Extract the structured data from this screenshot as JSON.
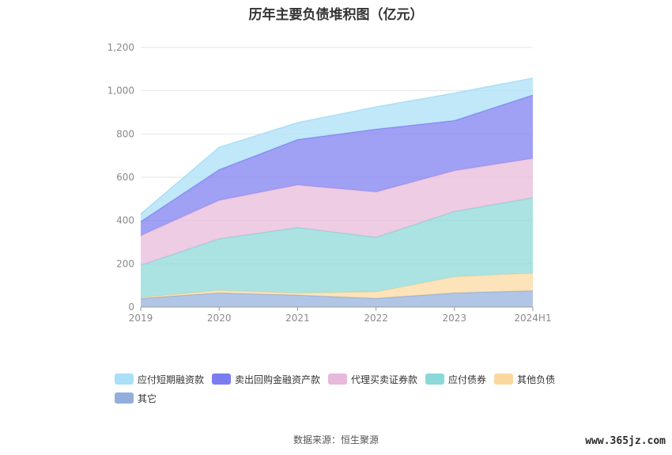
{
  "chart_data": {
    "type": "area",
    "stacked": true,
    "title": "历年主要负债堆积图（亿元）",
    "categories": [
      "2019",
      "2020",
      "2021",
      "2022",
      "2023",
      "2024H1"
    ],
    "ylim": [
      0,
      1200
    ],
    "yticks": [
      "0",
      "200",
      "400",
      "600",
      "800",
      "1,000",
      "1,200"
    ],
    "grid": true,
    "legend_position": "bottom",
    "series": [
      {
        "name": "其它",
        "color": "#93aedc",
        "values": [
          40,
          65,
          55,
          40,
          65,
          75
        ]
      },
      {
        "name": "其他负债",
        "color": "#fbd8a0",
        "values": [
          5,
          12,
          10,
          30,
          75,
          82
        ]
      },
      {
        "name": "应付债券",
        "color": "#8ad8d8",
        "values": [
          148,
          238,
          302,
          252,
          302,
          348
        ]
      },
      {
        "name": "代理买卖证券款",
        "color": "#e6b8da",
        "values": [
          137,
          178,
          197,
          210,
          188,
          182
        ]
      },
      {
        "name": "卖出回购金融资产款",
        "color": "#7b7cf0",
        "values": [
          65,
          142,
          210,
          290,
          232,
          293
        ]
      },
      {
        "name": "应付短期融资款",
        "color": "#a9dff7",
        "values": [
          35,
          103,
          78,
          103,
          127,
          78
        ]
      }
    ]
  },
  "legend": {
    "items": [
      {
        "label": "应付短期融资款",
        "color": "#a9dff7"
      },
      {
        "label": "卖出回购金融资产款",
        "color": "#7b7cf0"
      },
      {
        "label": "代理买卖证券款",
        "color": "#e6b8da"
      },
      {
        "label": "应付债券",
        "color": "#8ad8d8"
      },
      {
        "label": "其他负债",
        "color": "#fbd8a0"
      },
      {
        "label": "其它",
        "color": "#93aedc"
      }
    ]
  },
  "footer": {
    "source": "数据来源：恒生聚源",
    "watermark": "www.365jz.com"
  }
}
